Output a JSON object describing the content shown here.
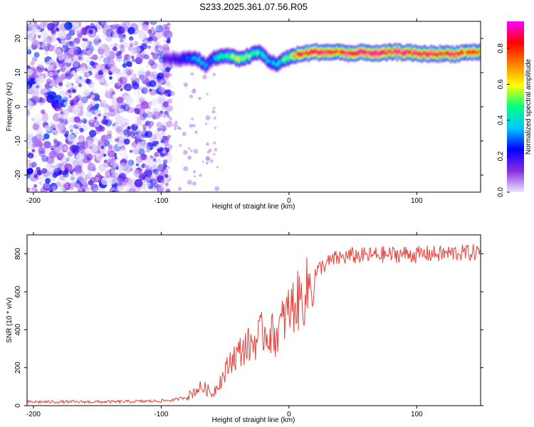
{
  "figure_title": "S233.2025.361.07.56.R05",
  "chart_data": [
    {
      "type": "heatmap",
      "title": "S233.2025.361.07.56.R05",
      "xlabel": "Height of straight line (km)",
      "ylabel": "Frequency (Hz)",
      "xlim": [
        -205,
        150
      ],
      "ylim": [
        -25,
        25
      ],
      "xticks": [
        -200,
        -100,
        0,
        100
      ],
      "yticks": [
        -20,
        -10,
        0,
        10,
        20
      ],
      "xtick_labels": [
        "-200",
        "-100",
        "0",
        "100"
      ],
      "ytick_labels": [
        "-20",
        "-10",
        "0",
        "10",
        "20"
      ],
      "colorbar": {
        "label": "Normalized spectral amplitude",
        "range": [
          0,
          0.95
        ],
        "ticks": [
          0.0,
          0.2,
          0.4,
          0.6,
          0.8
        ],
        "tick_labels": [
          "0.0",
          "0.2",
          "0.4",
          "0.6",
          "0.8"
        ],
        "colormap": [
          "#e8e8ff",
          "#8a2be2",
          "#0000ff",
          "#00c8ff",
          "#00ff80",
          "#ffff00",
          "#ff8000",
          "#ff0000",
          "#ff00ff"
        ]
      },
      "noise_region_x": [
        -205,
        -93
      ],
      "ridge": {
        "x": [
          -98,
          -90,
          -80,
          -75,
          -70,
          -65,
          -60,
          -55,
          -50,
          -45,
          -40,
          -35,
          -30,
          -25,
          -20,
          -15,
          -10,
          -5,
          0,
          5,
          10,
          20,
          30,
          40,
          50,
          60,
          70,
          80,
          90,
          100,
          110,
          120,
          130,
          140,
          150
        ],
        "freq": [
          14,
          14,
          14,
          14.5,
          13.5,
          12,
          14,
          14.5,
          15,
          14.5,
          14,
          14.5,
          15,
          16,
          15,
          13,
          12.5,
          13.5,
          14.5,
          15,
          15.5,
          16,
          16,
          16,
          15.5,
          16,
          15.5,
          16,
          16,
          15.5,
          15.5,
          15.5,
          15.5,
          16,
          16
        ],
        "amplitude": [
          0.15,
          0.2,
          0.25,
          0.3,
          0.35,
          0.35,
          0.3,
          0.4,
          0.45,
          0.5,
          0.55,
          0.5,
          0.5,
          0.45,
          0.4,
          0.35,
          0.35,
          0.45,
          0.5,
          0.7,
          0.8,
          0.85,
          0.8,
          0.75,
          0.85,
          0.8,
          0.85,
          0.8,
          0.85,
          0.8,
          0.85,
          0.75,
          0.8,
          0.75,
          0.7
        ]
      }
    },
    {
      "type": "line",
      "xlabel": "Height of straight line (km)",
      "ylabel": "SNR (10 * v/v)",
      "xlim": [
        -205,
        150
      ],
      "ylim": [
        0,
        900
      ],
      "xticks": [
        -200,
        -100,
        0,
        100
      ],
      "yticks": [
        0,
        200,
        400,
        600,
        800
      ],
      "xtick_labels": [
        "-200",
        "-100",
        "0",
        "100"
      ],
      "ytick_labels": [
        "0",
        "200",
        "400",
        "600",
        "800"
      ],
      "series": [
        {
          "name": "SNR",
          "color": "#e8403a",
          "x": [
            -205,
            -180,
            -160,
            -140,
            -120,
            -100,
            -90,
            -80,
            -75,
            -70,
            -65,
            -60,
            -55,
            -50,
            -45,
            -40,
            -35,
            -30,
            -25,
            -20,
            -15,
            -10,
            -5,
            0,
            5,
            10,
            15,
            20,
            25,
            30,
            35,
            40,
            50,
            60,
            70,
            80,
            90,
            100,
            110,
            120,
            130,
            140,
            150
          ],
          "y": [
            20,
            20,
            20,
            20,
            22,
            25,
            30,
            45,
            70,
            95,
            90,
            60,
            120,
            170,
            250,
            270,
            310,
            320,
            350,
            390,
            380,
            370,
            440,
            500,
            540,
            560,
            620,
            690,
            730,
            750,
            770,
            780,
            790,
            790,
            795,
            795,
            800,
            795,
            800,
            800,
            805,
            805,
            810
          ]
        }
      ]
    }
  ]
}
